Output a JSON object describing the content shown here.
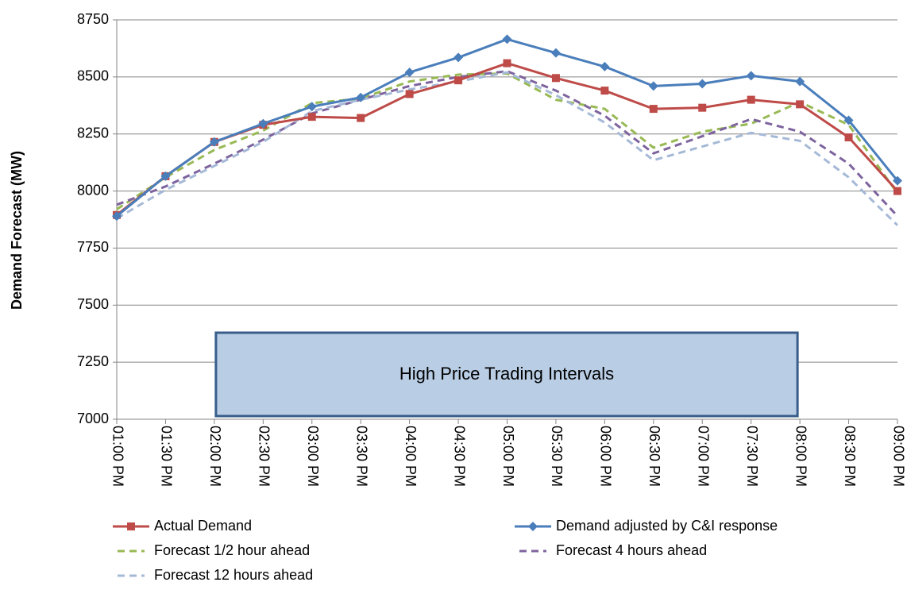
{
  "chart_data": {
    "type": "line",
    "y_label": "Demand Forecast (MW)",
    "annotation": "High Price Trading Intervals",
    "categories": [
      "01:00 PM",
      "01:30 PM",
      "02:00 PM",
      "02:30 PM",
      "03:00 PM",
      "03:30 PM",
      "04:00 PM",
      "04:30 PM",
      "05:00 PM",
      "05:30 PM",
      "06:00 PM",
      "06:30 PM",
      "07:00 PM",
      "07:30 PM",
      "08:00 PM",
      "08:30 PM",
      "09:00 PM"
    ],
    "series": [
      {
        "name": "Actual Demand",
        "color": "#be4b48",
        "marker": "square",
        "dashed": false,
        "values": [
          7895,
          8065,
          8215,
          8290,
          8325,
          8320,
          8425,
          8485,
          8560,
          8495,
          8440,
          8360,
          8365,
          8400,
          8380,
          8235,
          8000
        ]
      },
      {
        "name": "Demand adjusted by C&I response",
        "color": "#4a7ebb",
        "marker": "diamond",
        "dashed": false,
        "values": [
          7890,
          8065,
          8215,
          8295,
          8370,
          8410,
          8520,
          8585,
          8665,
          8605,
          8545,
          8460,
          8470,
          8505,
          8480,
          8310,
          8045
        ]
      },
      {
        "name": "Forecast 1/2 hour ahead",
        "color": "#98b954",
        "marker": "none",
        "dashed": true,
        "values": [
          7920,
          8060,
          8180,
          8265,
          8385,
          8405,
          8480,
          8510,
          8515,
          8400,
          8360,
          8190,
          8260,
          8295,
          8390,
          8290,
          7990
        ]
      },
      {
        "name": "Forecast 4 hours ahead",
        "color": "#7e649e",
        "marker": "none",
        "dashed": true,
        "values": [
          7940,
          8020,
          8120,
          8225,
          8340,
          8400,
          8460,
          8500,
          8525,
          8440,
          8330,
          8165,
          8240,
          8315,
          8260,
          8120,
          7890
        ]
      },
      {
        "name": "Forecast 12 hours ahead",
        "color": "#a5b9d7",
        "marker": "none",
        "dashed": true,
        "values": [
          7880,
          8005,
          8110,
          8215,
          8350,
          8400,
          8445,
          8480,
          8520,
          8420,
          8300,
          8135,
          8195,
          8255,
          8220,
          8060,
          7850
        ]
      }
    ],
    "ylim": [
      7000,
      8750
    ],
    "yticks": [
      7000,
      7250,
      7500,
      7750,
      8000,
      8250,
      8500,
      8750
    ],
    "grid": true,
    "legend": "bottom"
  }
}
